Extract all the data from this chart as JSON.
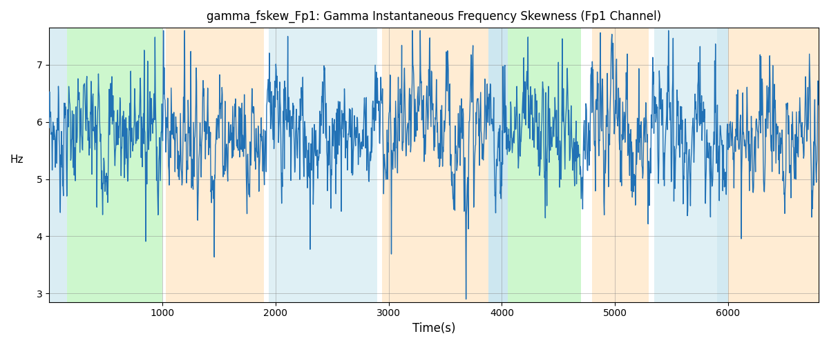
{
  "title": "gamma_fskew_Fp1: Gamma Instantaneous Frequency Skewness (Fp1 Channel)",
  "xlabel": "Time(s)",
  "ylabel": "Hz",
  "ylim": [
    2.85,
    7.65
  ],
  "xlim": [
    0,
    6800
  ],
  "line_color": "#2171b5",
  "line_width": 1.0,
  "bands": [
    {
      "xmin": 0,
      "xmax": 160,
      "color": "#add8e6",
      "alpha": 0.45
    },
    {
      "xmin": 160,
      "xmax": 1000,
      "color": "#90ee90",
      "alpha": 0.45
    },
    {
      "xmin": 1030,
      "xmax": 1900,
      "color": "#ffd59e",
      "alpha": 0.45
    },
    {
      "xmin": 1940,
      "xmax": 2900,
      "color": "#add8e6",
      "alpha": 0.38
    },
    {
      "xmin": 2940,
      "xmax": 3880,
      "color": "#ffd59e",
      "alpha": 0.45
    },
    {
      "xmin": 3880,
      "xmax": 4050,
      "color": "#add8e6",
      "alpha": 0.6
    },
    {
      "xmin": 4050,
      "xmax": 4700,
      "color": "#90ee90",
      "alpha": 0.45
    },
    {
      "xmin": 4800,
      "xmax": 5300,
      "color": "#ffd59e",
      "alpha": 0.45
    },
    {
      "xmin": 5350,
      "xmax": 5900,
      "color": "#add8e6",
      "alpha": 0.38
    },
    {
      "xmin": 5900,
      "xmax": 6000,
      "color": "#add8e6",
      "alpha": 0.55
    },
    {
      "xmin": 6000,
      "xmax": 6800,
      "color": "#ffd59e",
      "alpha": 0.45
    }
  ],
  "yticks": [
    3,
    4,
    5,
    6,
    7
  ],
  "xticks": [
    1000,
    2000,
    3000,
    4000,
    5000,
    6000
  ],
  "grid_alpha": 0.6,
  "title_fontsize": 12,
  "xlabel_fontsize": 12,
  "ylabel_fontsize": 11
}
